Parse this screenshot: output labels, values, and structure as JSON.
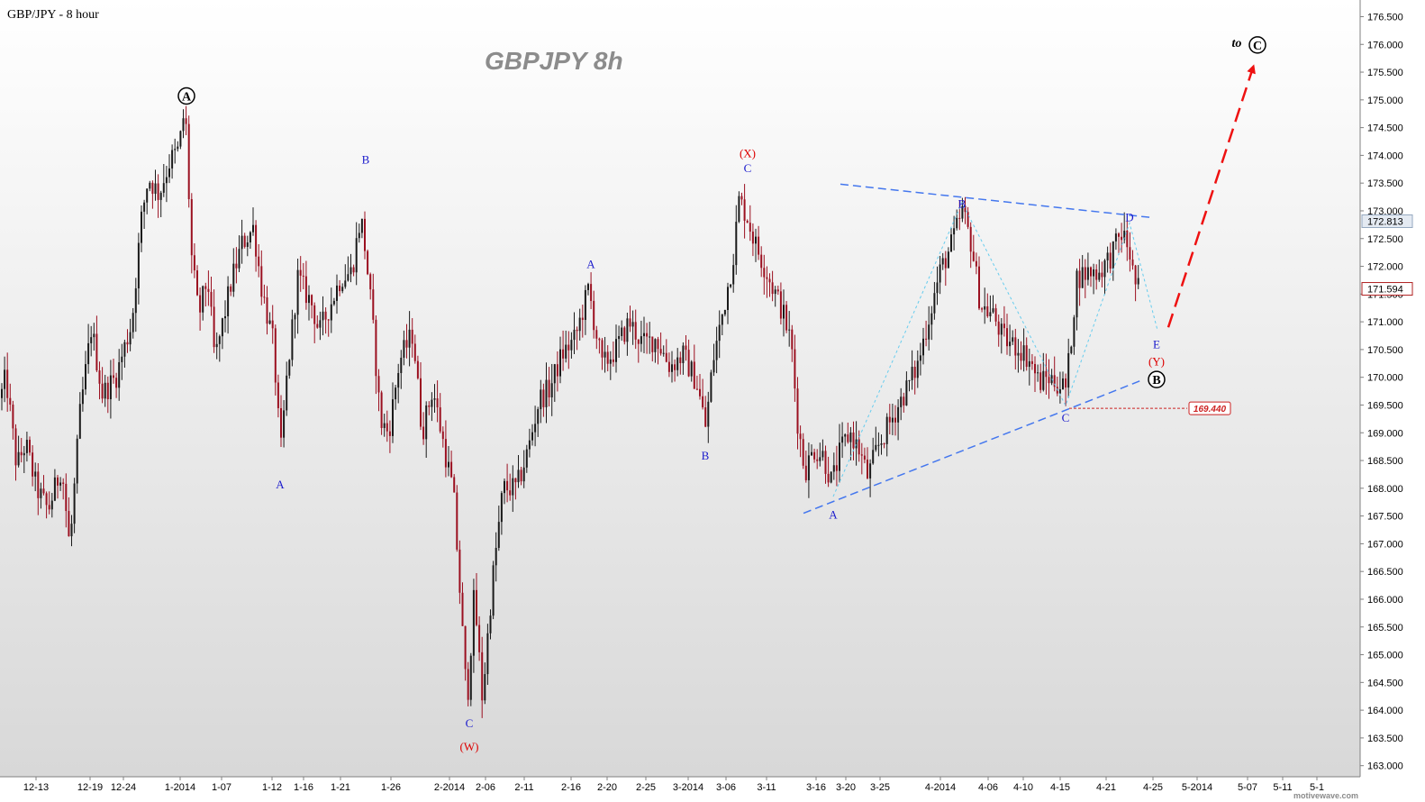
{
  "header": {
    "symbol_label": "GBP/JPY - 8 hour",
    "watermark": "GBPJPY  8h"
  },
  "credit": "motivewave.com",
  "chart_data": {
    "type": "candlestick",
    "symbol": "GBP/JPY",
    "timeframe": "8 hour",
    "ylim": [
      162.8,
      176.8
    ],
    "yticks": [
      163.0,
      163.5,
      164.0,
      164.5,
      165.0,
      165.5,
      166.0,
      166.5,
      167.0,
      167.5,
      168.0,
      168.5,
      169.0,
      169.5,
      170.0,
      170.5,
      171.0,
      171.5,
      172.0,
      172.5,
      173.0,
      173.5,
      174.0,
      174.5,
      175.0,
      175.5,
      176.0,
      176.5
    ],
    "xlim": [
      0,
      1510
    ],
    "xticks": [
      {
        "label": "12-13",
        "x": 40
      },
      {
        "label": "12-19",
        "x": 100
      },
      {
        "label": "12-24",
        "x": 137
      },
      {
        "label": "1-2014",
        "x": 200
      },
      {
        "label": "1-07",
        "x": 246
      },
      {
        "label": "1-12",
        "x": 302
      },
      {
        "label": "1-16",
        "x": 337
      },
      {
        "label": "1-21",
        "x": 378
      },
      {
        "label": "1-26",
        "x": 434
      },
      {
        "label": "2-2014",
        "x": 499
      },
      {
        "label": "2-06",
        "x": 539
      },
      {
        "label": "2-11",
        "x": 582
      },
      {
        "label": "2-16",
        "x": 634
      },
      {
        "label": "2-20",
        "x": 674
      },
      {
        "label": "2-25",
        "x": 717
      },
      {
        "label": "3-2014",
        "x": 764
      },
      {
        "label": "3-06",
        "x": 806
      },
      {
        "label": "3-11",
        "x": 851
      },
      {
        "label": "3-16",
        "x": 906
      },
      {
        "label": "3-20",
        "x": 939
      },
      {
        "label": "3-25",
        "x": 977
      },
      {
        "label": "4-2014",
        "x": 1044
      },
      {
        "label": "4-06",
        "x": 1097
      },
      {
        "label": "4-10",
        "x": 1136
      },
      {
        "label": "4-15",
        "x": 1177
      },
      {
        "label": "4-21",
        "x": 1228
      },
      {
        "label": "4-25",
        "x": 1280
      },
      {
        "label": "5-2014",
        "x": 1329
      },
      {
        "label": "5-07",
        "x": 1385
      },
      {
        "label": "5-11",
        "x": 1424
      },
      {
        "label": "5-1",
        "x": 1462
      }
    ],
    "price_path": [
      [
        0,
        169.5
      ],
      [
        8,
        170.0
      ],
      [
        20,
        168.4
      ],
      [
        30,
        168.8
      ],
      [
        42,
        168.0
      ],
      [
        55,
        167.6
      ],
      [
        70,
        168.4
      ],
      [
        79,
        166.9
      ],
      [
        90,
        169.3
      ],
      [
        103,
        170.9
      ],
      [
        115,
        169.7
      ],
      [
        130,
        170.0
      ],
      [
        148,
        171.0
      ],
      [
        158,
        172.8
      ],
      [
        166,
        173.6
      ],
      [
        178,
        173.3
      ],
      [
        190,
        173.9
      ],
      [
        200,
        174.1
      ],
      [
        207,
        174.9
      ],
      [
        214,
        172.2
      ],
      [
        222,
        171.1
      ],
      [
        232,
        171.8
      ],
      [
        240,
        170.3
      ],
      [
        258,
        171.7
      ],
      [
        270,
        172.4
      ],
      [
        283,
        172.7
      ],
      [
        292,
        171.6
      ],
      [
        305,
        170.6
      ],
      [
        313,
        168.6
      ],
      [
        320,
        170.0
      ],
      [
        332,
        171.8
      ],
      [
        348,
        171.3
      ],
      [
        356,
        170.8
      ],
      [
        368,
        171.3
      ],
      [
        380,
        171.8
      ],
      [
        392,
        171.9
      ],
      [
        402,
        172.9
      ],
      [
        407,
        172.3
      ],
      [
        414,
        171.2
      ],
      [
        424,
        169.2
      ],
      [
        433,
        169.0
      ],
      [
        445,
        170.3
      ],
      [
        460,
        170.8
      ],
      [
        470,
        169.0
      ],
      [
        482,
        169.8
      ],
      [
        495,
        168.7
      ],
      [
        505,
        167.9
      ],
      [
        513,
        165.9
      ],
      [
        520,
        164.1
      ],
      [
        528,
        166.1
      ],
      [
        537,
        164.2
      ],
      [
        548,
        166.3
      ],
      [
        560,
        168.0
      ],
      [
        575,
        168.0
      ],
      [
        588,
        168.7
      ],
      [
        600,
        169.6
      ],
      [
        612,
        169.8
      ],
      [
        625,
        170.4
      ],
      [
        640,
        170.7
      ],
      [
        655,
        171.6
      ],
      [
        660,
        171.1
      ],
      [
        670,
        170.2
      ],
      [
        685,
        170.5
      ],
      [
        700,
        171.0
      ],
      [
        715,
        170.6
      ],
      [
        730,
        170.7
      ],
      [
        745,
        170.2
      ],
      [
        760,
        170.4
      ],
      [
        775,
        169.9
      ],
      [
        785,
        169.1
      ],
      [
        793,
        170.3
      ],
      [
        803,
        171.1
      ],
      [
        815,
        172.1
      ],
      [
        822,
        173.2
      ],
      [
        831,
        172.9
      ],
      [
        840,
        172.4
      ],
      [
        850,
        172.0
      ],
      [
        860,
        171.6
      ],
      [
        870,
        171.2
      ],
      [
        880,
        170.6
      ],
      [
        887,
        169.2
      ],
      [
        895,
        168.3
      ],
      [
        905,
        168.7
      ],
      [
        915,
        168.6
      ],
      [
        925,
        168.1
      ],
      [
        935,
        168.7
      ],
      [
        945,
        169.0
      ],
      [
        955,
        168.7
      ],
      [
        965,
        168.2
      ],
      [
        975,
        168.7
      ],
      [
        990,
        169.2
      ],
      [
        1005,
        169.7
      ],
      [
        1020,
        170.2
      ],
      [
        1030,
        170.9
      ],
      [
        1045,
        171.9
      ],
      [
        1058,
        172.4
      ],
      [
        1070,
        173.0
      ],
      [
        1080,
        172.4
      ],
      [
        1090,
        171.3
      ],
      [
        1105,
        171.1
      ],
      [
        1115,
        170.7
      ],
      [
        1125,
        170.6
      ],
      [
        1135,
        170.5
      ],
      [
        1145,
        170.3
      ],
      [
        1155,
        169.9
      ],
      [
        1165,
        170.0
      ],
      [
        1175,
        169.9
      ],
      [
        1185,
        169.8
      ],
      [
        1190,
        170.6
      ],
      [
        1197,
        171.8
      ],
      [
        1210,
        171.9
      ],
      [
        1222,
        171.9
      ],
      [
        1235,
        172.2
      ],
      [
        1247,
        172.6
      ],
      [
        1255,
        172.3
      ],
      [
        1260,
        171.8
      ],
      [
        1264,
        171.6
      ]
    ],
    "elliott_waves": {
      "labels": [
        {
          "text": "A",
          "x": 207,
          "y": 175.07,
          "style": "circle-black"
        },
        {
          "text": "B",
          "x": 406,
          "y": 173.92,
          "style": "blue"
        },
        {
          "text": "A",
          "x": 311,
          "y": 168.06,
          "style": "blue"
        },
        {
          "text": "C",
          "x": 521,
          "y": 163.76,
          "style": "blue"
        },
        {
          "text": "(W)",
          "x": 521,
          "y": 163.34,
          "style": "red"
        },
        {
          "text": "A",
          "x": 656,
          "y": 172.03,
          "style": "blue"
        },
        {
          "text": "B",
          "x": 783,
          "y": 168.58,
          "style": "blue"
        },
        {
          "text": "(X)",
          "x": 830,
          "y": 174.03,
          "style": "red"
        },
        {
          "text": "C",
          "x": 830,
          "y": 173.76,
          "style": "blue"
        },
        {
          "text": "A",
          "x": 925,
          "y": 167.52,
          "style": "blue"
        },
        {
          "text": "B",
          "x": 1068,
          "y": 173.12,
          "style": "blue"
        },
        {
          "text": "C",
          "x": 1183,
          "y": 169.26,
          "style": "blue"
        },
        {
          "text": "D",
          "x": 1254,
          "y": 172.88,
          "style": "blue"
        },
        {
          "text": "E",
          "x": 1284,
          "y": 170.59,
          "style": "blue"
        },
        {
          "text": "(Y)",
          "x": 1284,
          "y": 170.28,
          "style": "red"
        },
        {
          "text": "B",
          "x": 1284,
          "y": 169.96,
          "style": "circle-black"
        },
        {
          "text": "to",
          "x": 1373,
          "y": 176.02,
          "style": "black-italic"
        },
        {
          "text": "C",
          "x": 1396,
          "y": 175.99,
          "style": "circle-black"
        }
      ],
      "triangle_upper_line": [
        [
          933,
          173.48
        ],
        [
          1278,
          172.88
        ]
      ],
      "triangle_lower_line": [
        [
          892,
          167.55
        ],
        [
          1268,
          169.95
        ]
      ],
      "triangle_internal_path": [
        [
          925,
          167.85
        ],
        [
          1068,
          173.15
        ],
        [
          1183,
          169.49
        ],
        [
          1254,
          172.78
        ],
        [
          1285,
          170.85
        ]
      ],
      "projection_arrow": [
        [
          1297,
          170.9
        ],
        [
          1391,
          175.58
        ]
      ],
      "support_level": {
        "value": 169.44,
        "label": "169.440",
        "x_start": 1187,
        "x_end": 1318
      }
    },
    "price_tags": [
      {
        "value": 172.813,
        "label": "172.813",
        "fill": "#e4eaf2",
        "stroke": "#95a8c0",
        "text_color": "#000"
      },
      {
        "value": 171.594,
        "label": "171.594",
        "fill": "#ffffff",
        "stroke": "#b02020",
        "text_color": "#000"
      }
    ],
    "colors": {
      "up_candle": "#1a1a1a",
      "down_candle": "#9b1020",
      "wave_blue": "#1a1acc",
      "wave_red": "#dd0000",
      "trendline": "#4477ee",
      "projection": "#ee1111",
      "support": "#cc2222"
    }
  }
}
